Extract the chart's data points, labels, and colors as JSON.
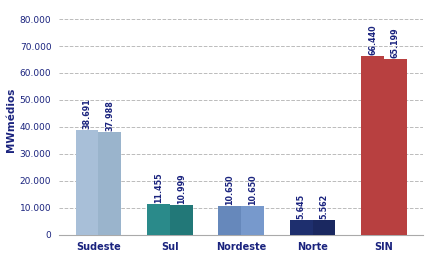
{
  "categories": [
    "Sudeste",
    "Sul",
    "Nordeste",
    "Norte",
    "SIN"
  ],
  "series1_values": [
    38691,
    11455,
    10650,
    5645,
    66440
  ],
  "series2_values": [
    37988,
    10999,
    10650,
    5562,
    65199
  ],
  "series1_labels": [
    "38.691",
    "11.455",
    "10.650",
    "5.645",
    "66.440"
  ],
  "series2_labels": [
    "37.988",
    "10.999",
    "10.650",
    "5.562",
    "65.199"
  ],
  "series1_colors": [
    "#a8bfd8",
    "#2a8a8a",
    "#6688bb",
    "#1e2f6e",
    "#b84040"
  ],
  "series2_colors": [
    "#9ab4cc",
    "#227878",
    "#7799cc",
    "#1a2860",
    "#b84040"
  ],
  "ylabel": "MWmédios",
  "ylim": [
    0,
    85000
  ],
  "yticks": [
    0,
    10000,
    20000,
    30000,
    40000,
    50000,
    60000,
    70000,
    80000
  ],
  "bar_width": 0.32,
  "label_fontsize": 5.8,
  "label_color": "#1a237e",
  "axis_label_color": "#1a237e",
  "tick_label_color": "#1a237e",
  "background_color": "#ffffff",
  "grid_color": "#bbbbbb"
}
